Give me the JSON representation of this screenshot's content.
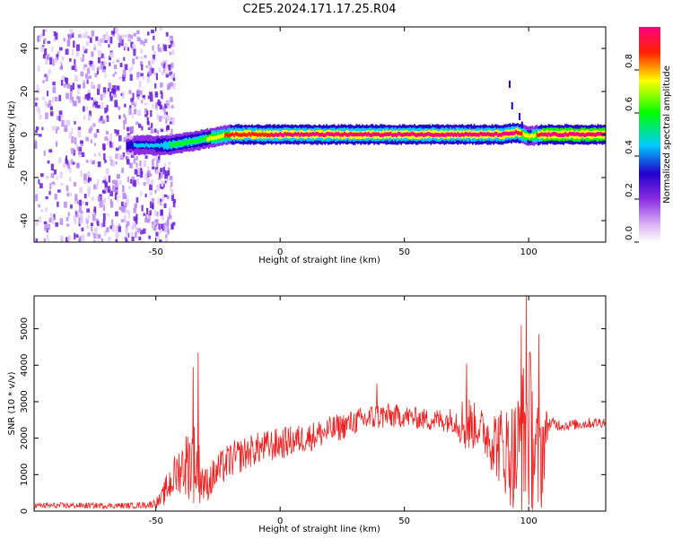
{
  "title": "C2E5.2024.171.17.25.R04",
  "colors": {
    "snr_line": "#ee2222",
    "colormap": [
      "#ffffff",
      "#dcb4f5",
      "#8a2be2",
      "#2200cc",
      "#00ccff",
      "#00ff00",
      "#ffff00",
      "#ff2200",
      "#ff0080"
    ]
  },
  "chart_data": [
    {
      "type": "heatmap",
      "xlabel": "Height of straight line (km)",
      "ylabel": "Frequency (Hz)",
      "xlim": [
        -99,
        131
      ],
      "ylim": [
        -50,
        50
      ],
      "xticks": [
        -50,
        0,
        50,
        100
      ],
      "yticks": [
        -40,
        -20,
        0,
        20,
        40
      ],
      "colorbar": {
        "label": "Normalized spectral amplitude",
        "range": [
          0.0,
          1.0
        ],
        "ticks": [
          "0.0",
          "0.2",
          "0.4",
          "0.6",
          "0.8"
        ],
        "tick_values": [
          0.0,
          0.2,
          0.4,
          0.6,
          0.8
        ]
      },
      "ridge": {
        "x": [
          -62,
          -55,
          -50,
          -45,
          -40,
          -35,
          -30,
          -25,
          -20,
          -10,
          0,
          10,
          30,
          50,
          70,
          90,
          95,
          100,
          105,
          131
        ],
        "freq_hz": [
          -5,
          -5,
          -5,
          -5,
          -4,
          -3,
          -2,
          -1,
          0,
          0,
          0,
          0,
          0,
          0,
          0,
          0,
          1,
          -1,
          0,
          0
        ],
        "amplitude": [
          0.3,
          0.35,
          0.4,
          0.45,
          0.5,
          0.55,
          0.6,
          0.7,
          0.8,
          0.85,
          0.9,
          0.9,
          0.9,
          0.9,
          0.9,
          0.9,
          0.9,
          0.6,
          0.9,
          0.95
        ]
      },
      "noise_region": {
        "x_from": -99,
        "x_to": -43,
        "amplitude": 0.2
      }
    },
    {
      "type": "line",
      "xlabel": "Height of straight line (km)",
      "ylabel": "SNR (10 * v/v)",
      "xlim": [
        -99,
        131
      ],
      "ylim": [
        0,
        5900
      ],
      "xticks": [
        -50,
        0,
        50,
        100
      ],
      "yticks": [
        0,
        1000,
        2000,
        3000,
        4000,
        5000
      ],
      "envelope": {
        "x": [
          -99,
          -60,
          -52,
          -48,
          -45,
          -40,
          -35,
          -30,
          -25,
          -20,
          -10,
          0,
          10,
          20,
          30,
          40,
          50,
          60,
          70,
          75,
          80,
          85,
          90,
          95,
          100,
          103,
          105,
          108,
          115,
          131
        ],
        "mean": [
          150,
          150,
          180,
          300,
          700,
          1200,
          1400,
          700,
          1100,
          1400,
          1700,
          1850,
          2000,
          2200,
          2450,
          2600,
          2600,
          2500,
          2500,
          2400,
          2300,
          2000,
          1700,
          1500,
          2400,
          1300,
          1600,
          2400,
          2350,
          2450
        ],
        "spread": [
          80,
          80,
          100,
          200,
          500,
          700,
          1200,
          500,
          500,
          500,
          450,
          450,
          400,
          400,
          350,
          400,
          300,
          300,
          350,
          900,
          500,
          900,
          1200,
          1700,
          2500,
          1700,
          1800,
          200,
          150,
          150
        ]
      },
      "spikes": [
        {
          "x": -33,
          "y": 4350
        },
        {
          "x": -35,
          "y": 3950
        },
        {
          "x": 39,
          "y": 3500
        },
        {
          "x": 75,
          "y": 4050
        },
        {
          "x": 97,
          "y": 5100
        },
        {
          "x": 99,
          "y": 5900
        },
        {
          "x": 104,
          "y": 4850
        }
      ]
    }
  ]
}
